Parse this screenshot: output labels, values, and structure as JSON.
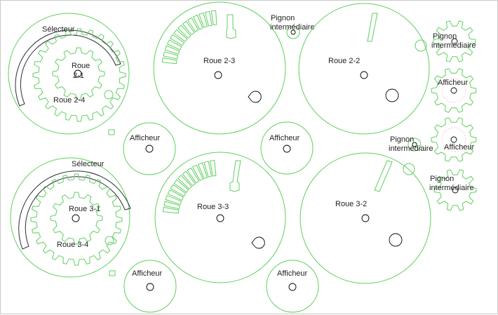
{
  "colors": {
    "cut_line": "#5fcf5f",
    "hole_line": "#000000",
    "selector_line": "#2b2b3a",
    "engraving": "#f0a6b8",
    "sheet_border": "#c9c9c9"
  },
  "labels": {
    "selecteur_top": "Sélecteur",
    "roue_2_1_a": "Roue",
    "roue_2_1_b": "2-1",
    "roue_2_4": "Roue 2-4",
    "roue_2_3": "Roue 2-3",
    "pignon_top_a": "Pignon",
    "pignon_top_b": "intermédiaire",
    "roue_2_2": "Roue 2-2",
    "pignon_right_a": "Pignon",
    "pignon_right_b": "intermédiaire",
    "afficheur_right_top": "Afficheur",
    "afficheur_left_mid": "Afficheur",
    "afficheur_center_mid": "Afficheur",
    "pignon_mid_a": "Pignon",
    "pignon_mid_b": "intermédiaire",
    "afficheur_right_mid": "Afficheur",
    "pignon_right_bottom_a": "Pignon",
    "pignon_right_bottom_b": "intermédiaire",
    "selecteur_bottom": "Sélecteur",
    "roue_3_1": "Roue 3-1",
    "roue_3_4": "Roue 3-4",
    "roue_3_3": "Roue 3-3",
    "roue_3_2": "Roue 3-2",
    "afficheur_left_bottom": "Afficheur",
    "afficheur_center_bottom": "Afficheur"
  }
}
